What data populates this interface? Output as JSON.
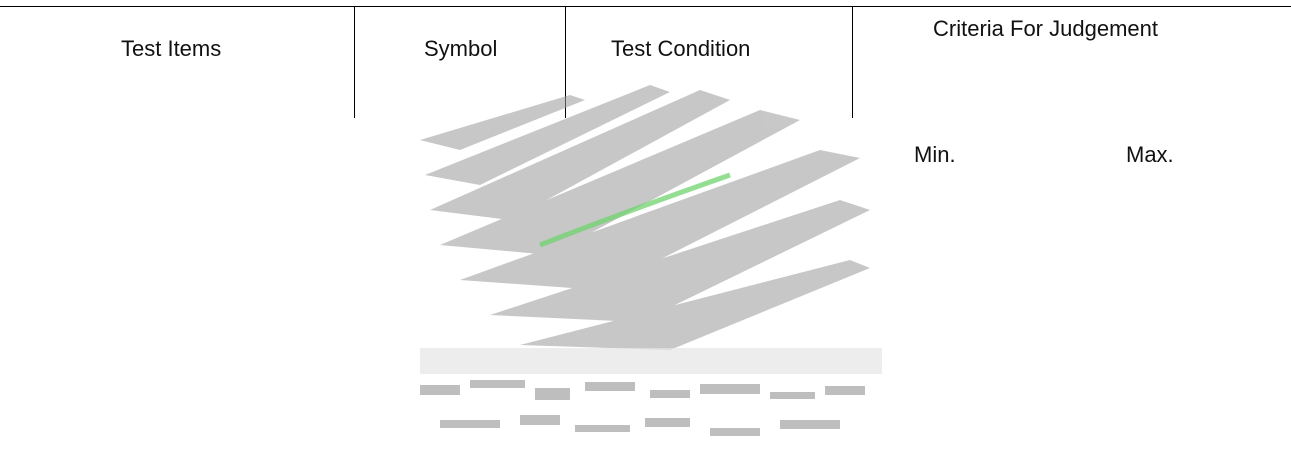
{
  "table": {
    "header": {
      "test_items": "Test Items",
      "symbol": "Symbol",
      "test_condition": "Test Condition",
      "criteria": "Criteria For Judgement",
      "min": "Min.",
      "max": "Max."
    }
  },
  "colors": {
    "text": "#111111",
    "border": "#000000",
    "background": "#ffffff",
    "watermark_gray": "#9a9a9a",
    "watermark_green": "#6fd36f"
  }
}
